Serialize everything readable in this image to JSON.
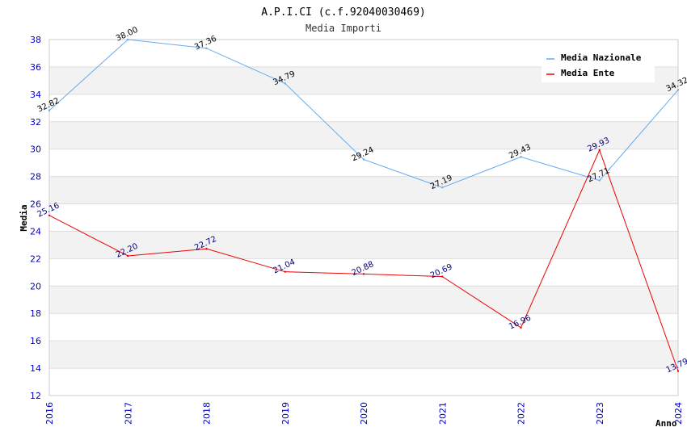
{
  "chart_data": {
    "type": "line",
    "title": "A.P.I.CI (c.f.92040030469)",
    "subtitle": "Media Importi",
    "xlabel": "Anno",
    "ylabel": "Media",
    "categories": [
      "2016",
      "2017",
      "2018",
      "2019",
      "2020",
      "2021",
      "2022",
      "2023",
      "2024"
    ],
    "ylim": [
      12,
      38
    ],
    "yticks": [
      "12",
      "14",
      "16",
      "18",
      "20",
      "22",
      "24",
      "26",
      "28",
      "30",
      "32",
      "34",
      "36",
      "38"
    ],
    "grid": true,
    "legend_position": "top-right",
    "series": [
      {
        "name": "Media Nazionale",
        "color": "#66aaee",
        "values": [
          32.82,
          38.0,
          37.36,
          34.79,
          29.24,
          27.19,
          29.43,
          27.71,
          34.32
        ],
        "labels": [
          "32.82",
          "38.00",
          "37.36",
          "34.79",
          "29.24",
          "27.19",
          "29.43",
          "27.71",
          "34.32"
        ]
      },
      {
        "name": "Media Ente",
        "color": "#ee0000",
        "values": [
          25.16,
          22.2,
          22.72,
          21.04,
          20.88,
          20.69,
          16.96,
          29.93,
          13.79
        ],
        "labels": [
          "25.16",
          "22.20",
          "22.72",
          "21.04",
          "20.88",
          "20.69",
          "16.96",
          "29.93",
          "13.79"
        ]
      }
    ]
  }
}
